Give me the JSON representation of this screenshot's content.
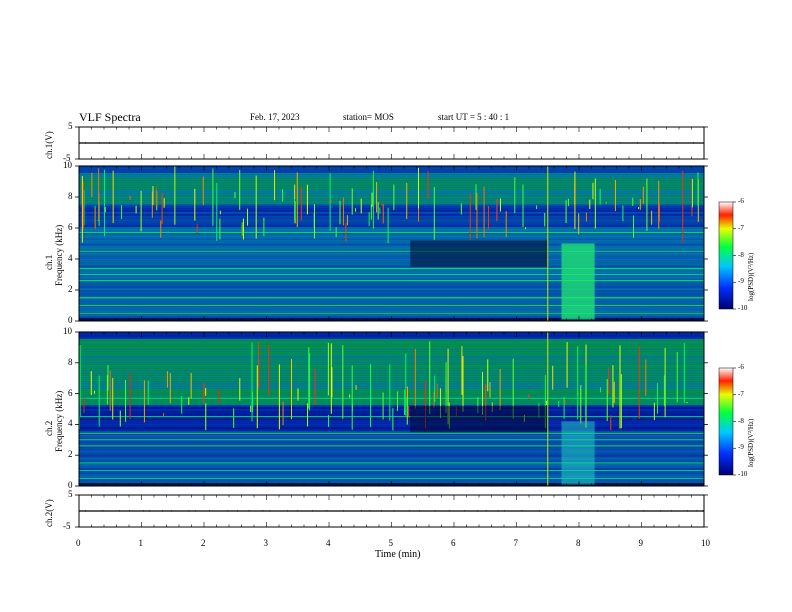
{
  "header": {
    "title": "VLF Spectra",
    "date": "Feb. 17, 2023",
    "station": "station= MOS",
    "start_ut": "start  UT =  5 : 40 : 1"
  },
  "chart_data": [
    {
      "type": "line",
      "ylabel": "ch.1(V)",
      "ylim": [
        -5,
        5
      ],
      "yticks": [
        "5",
        "-5"
      ],
      "x": [
        0,
        10
      ],
      "series": [
        {
          "values": [
            0,
            0
          ]
        }
      ]
    },
    {
      "type": "heatmap",
      "ylabel_lines": [
        "ch.1",
        "Frequency (kHz)"
      ],
      "ylim": [
        0,
        10
      ],
      "yticks": [
        "0",
        "2",
        "4",
        "6",
        "8",
        "10"
      ],
      "xlim": [
        0,
        10
      ],
      "colorbar": {
        "label": "log(PSD)(V²/Hz)",
        "ticks": [
          "-6",
          "-7",
          "-8",
          "-9",
          "-10"
        ],
        "range": [
          -10,
          -6
        ]
      }
    },
    {
      "type": "heatmap",
      "ylabel_lines": [
        "ch.2",
        "Frequency (kHz)"
      ],
      "ylim": [
        0,
        10
      ],
      "yticks": [
        "0",
        "2",
        "4",
        "6",
        "8",
        "10"
      ],
      "xlim": [
        0,
        10
      ],
      "colorbar": {
        "label": "log(PSD)(V²/Hz)",
        "ticks": [
          "-6",
          "-7",
          "-8",
          "-9",
          "-10"
        ],
        "range": [
          -10,
          -6
        ]
      }
    },
    {
      "type": "line",
      "ylabel": "ch.2(V)",
      "ylim": [
        -5,
        5
      ],
      "yticks": [
        "5",
        "-5"
      ],
      "x": [
        0,
        10
      ],
      "series": [
        {
          "values": [
            0,
            0
          ]
        }
      ]
    }
  ],
  "xaxis": {
    "label": "Time (min)",
    "ticks": [
      "0",
      "1",
      "2",
      "3",
      "4",
      "5",
      "6",
      "7",
      "8",
      "9",
      "10"
    ],
    "xlim": [
      0,
      10
    ]
  }
}
